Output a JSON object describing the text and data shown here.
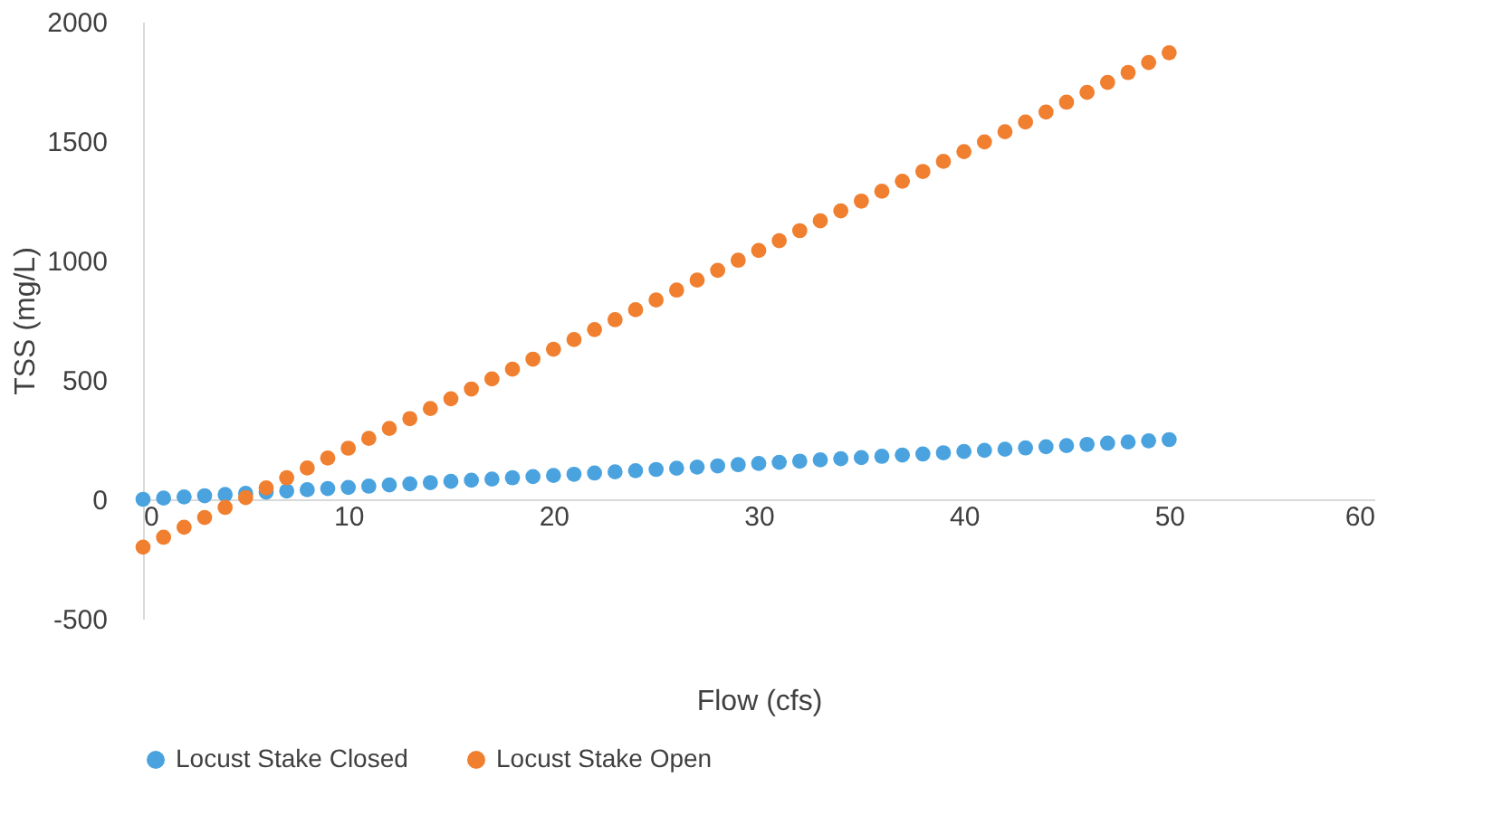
{
  "chart_data": {
    "type": "scatter",
    "xlabel": "Flow (cfs)",
    "ylabel": "TSS (mg/L)",
    "x": [
      0,
      1,
      2,
      3,
      4,
      5,
      6,
      7,
      8,
      9,
      10,
      11,
      12,
      13,
      14,
      15,
      16,
      17,
      18,
      19,
      20,
      21,
      22,
      23,
      24,
      25,
      26,
      27,
      28,
      29,
      30,
      31,
      32,
      33,
      34,
      35,
      36,
      37,
      38,
      39,
      40,
      41,
      42,
      43,
      44,
      45,
      46,
      47,
      48,
      49,
      50
    ],
    "series": [
      {
        "name": "Locust Stake Closed",
        "color": "#4aa3df",
        "values": [
          0,
          5,
          10,
          15,
          20,
          25,
          30,
          35,
          40,
          45,
          50,
          55,
          60,
          65,
          70,
          75,
          80,
          85,
          90,
          95,
          100,
          105,
          110,
          115,
          120,
          125,
          130,
          135,
          140,
          145,
          150,
          155,
          160,
          165,
          170,
          175,
          180,
          185,
          190,
          195,
          200,
          205,
          210,
          215,
          220,
          225,
          230,
          235,
          240,
          245,
          250
        ]
      },
      {
        "name": "Locust Stake Open",
        "color": "#f07f30",
        "values": [
          -200,
          -159,
          -117,
          -76,
          -34,
          7,
          48,
          90,
          131,
          173,
          214,
          255,
          297,
          338,
          380,
          421,
          462,
          504,
          545,
          587,
          628,
          669,
          711,
          752,
          794,
          835,
          876,
          918,
          959,
          1001,
          1042,
          1083,
          1125,
          1166,
          1208,
          1249,
          1290,
          1332,
          1373,
          1415,
          1456,
          1497,
          1539,
          1580,
          1622,
          1663,
          1704,
          1746,
          1787,
          1829,
          1870
        ]
      }
    ],
    "xlim": [
      0,
      60
    ],
    "xticks": [
      0,
      10,
      20,
      30,
      40,
      50,
      60
    ],
    "ylim": [
      -500,
      2000
    ],
    "yticks": [
      -500,
      0,
      500,
      1000,
      1500,
      2000
    ],
    "grid": false,
    "legend": "bottom",
    "marker": "circle"
  }
}
